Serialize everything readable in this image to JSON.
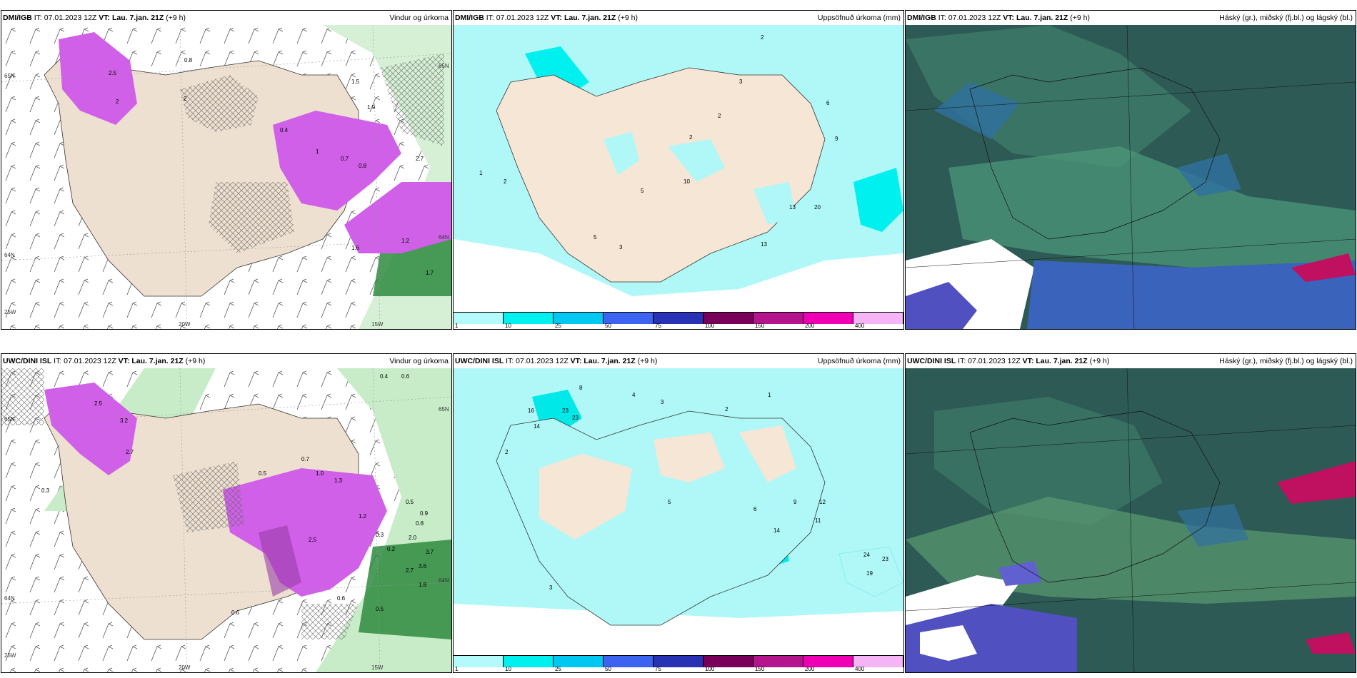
{
  "panels": [
    {
      "model": "DMI/IGB",
      "it": "IT: 07.01.2023 12Z",
      "vt_label": "VT:",
      "vt": "Lau. 7.jan. 21Z",
      "step": "(+9 h)",
      "title": "Vindur og úrkoma",
      "axis_labels": [
        "65N",
        "64N",
        "25W",
        "20W",
        "15W",
        "65N",
        "64N"
      ],
      "values": [
        "0.8",
        "2",
        "2",
        "1.5",
        "1.9",
        "0.4",
        "1",
        "0.7",
        "0.8",
        "2.7",
        "1.2",
        "1.7",
        "1.6",
        "2.5"
      ]
    },
    {
      "model": "DMI/IGB",
      "it": "IT: 07.01.2023 12Z",
      "vt_label": "VT:",
      "vt": "Lau. 7.jan. 21Z",
      "step": "(+9 h)",
      "title": "Uppsöfnuð úrkoma (mm)",
      "values": [
        "2",
        "3",
        "6",
        "9",
        "2",
        "2",
        "1",
        "2",
        "5",
        "10",
        "13",
        "20",
        "5",
        "3",
        "13"
      ]
    },
    {
      "model": "DMI/IGB",
      "it": "IT: 07.01.2023 12Z",
      "vt_label": "VT:",
      "vt": "Lau. 7.jan. 21Z",
      "step": "(+9 h)",
      "title": "Háský (gr.), miðský (fj.bl.) og lágský (bl.)"
    },
    {
      "model": "UWC/DINI ISL",
      "it": "IT: 07.01.2023 12Z",
      "vt_label": "VT:",
      "vt": "Lau. 7.jan. 21Z",
      "step": "(+9 h)",
      "title": "Vindur og úrkoma",
      "axis_labels": [
        "65N",
        "64N",
        "25W",
        "20W",
        "15W",
        "65N",
        "64N"
      ],
      "values": [
        "0.4",
        "0.6",
        "2.5",
        "3.2",
        "2.7",
        "0.3",
        "0.5",
        "1.3",
        "1.0",
        "0.7",
        "1.2",
        "2.5",
        "0.3",
        "0.2",
        "0.5",
        "0.9",
        "0.8",
        "2.0",
        "3.7",
        "3.6",
        "2.7",
        "1.8",
        "0.6",
        "0.6",
        "0.5"
      ]
    },
    {
      "model": "UWC/DINI ISL",
      "it": "IT: 07.01.2023 12Z",
      "vt_label": "VT:",
      "vt": "Lau. 7.jan. 21Z",
      "step": "(+9 h)",
      "title": "Uppsöfnuð úrkoma (mm)",
      "values": [
        "8",
        "23",
        "23",
        "16",
        "14",
        "4",
        "3",
        "2",
        "1",
        "5",
        "6",
        "9",
        "12",
        "11",
        "14",
        "24",
        "23",
        "19",
        "3",
        "2"
      ]
    },
    {
      "model": "UWC/DINI ISL",
      "it": "IT: 07.01.2023 12Z",
      "vt_label": "VT:",
      "vt": "Lau. 7.jan. 21Z",
      "step": "(+9 h)",
      "title": "Háský (gr.), miðský (fj.bl.) og lágský (bl.)"
    }
  ],
  "precip_colorbar": {
    "colors": [
      "#b4fafa",
      "#00f0f0",
      "#00c8f0",
      "#3c64f0",
      "#2832b4",
      "#78005a",
      "#b4148c",
      "#f000b4",
      "#f5b4f5"
    ],
    "ticks": [
      "1",
      "10",
      "25",
      "50",
      "75",
      "100",
      "150",
      "200",
      "400"
    ]
  },
  "colors": {
    "land": "#eee0d0",
    "precip_pink": "#e070f0",
    "cyan": "#b0f8f8",
    "cloud_dark": "#2d5a55",
    "cloud_green": "#5a8a6a"
  }
}
